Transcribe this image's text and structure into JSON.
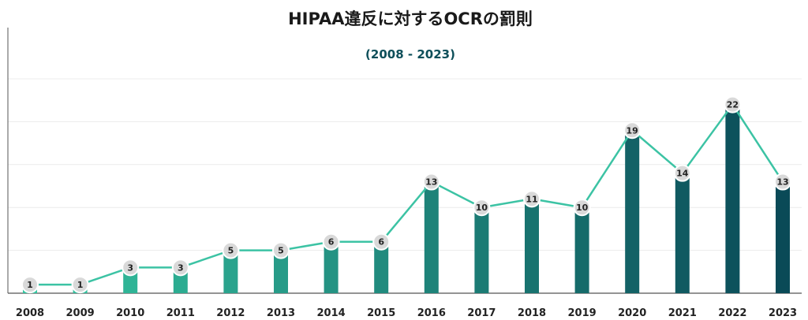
{
  "chart_data": {
    "type": "bar",
    "title": "HIPAA違反に対するOCRの罰則",
    "subtitle": "(2008 - 2023)",
    "xlabel": "",
    "ylabel": "",
    "categories": [
      "2008",
      "2009",
      "2010",
      "2011",
      "2012",
      "2013",
      "2014",
      "2015",
      "2016",
      "2017",
      "2018",
      "2019",
      "2020",
      "2021",
      "2022",
      "2023"
    ],
    "values": [
      1,
      1,
      3,
      3,
      5,
      5,
      6,
      6,
      13,
      10,
      11,
      10,
      19,
      14,
      22,
      13
    ],
    "ylim": [
      0,
      25
    ],
    "grid": true,
    "legend": "none",
    "overlay_line": true,
    "colors": {
      "bar_gradient_start": "#35c4a0",
      "bar_gradient_end": "#0a4a57",
      "line": "#3cc3a4",
      "marker_fill": "#d9d9d9",
      "marker_stroke": "#ffffff",
      "grid": "#ececec",
      "axis": "#555555",
      "title": "#1a1a1a",
      "subtitle": "#0e4f5a"
    }
  }
}
